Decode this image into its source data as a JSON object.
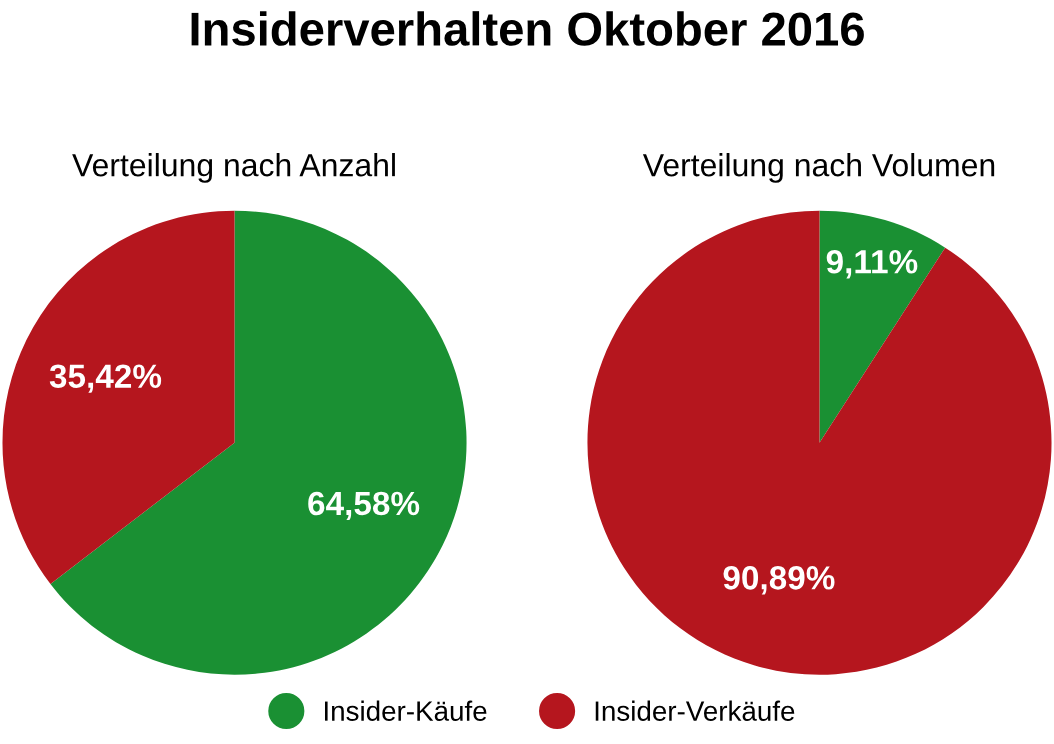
{
  "chart_data": [
    {
      "type": "pie",
      "title": "Insiderverhalten Oktober 2016",
      "subtitle": "Verteilung nach Anzahl",
      "categories": [
        "Insider-Käufe",
        "Insider-Verkäufe"
      ],
      "values": [
        64.58,
        35.42
      ],
      "value_labels": [
        "64,58%",
        "35,42%"
      ],
      "colors": [
        "#1a9033",
        "#b5161e"
      ],
      "legend": "bottom"
    },
    {
      "type": "pie",
      "subtitle": "Verteilung nach Volumen",
      "categories": [
        null,
        null
      ],
      "values": [
        9.11,
        90.89
      ],
      "value_labels": [
        "9,11%",
        "90,89%"
      ],
      "colors": [
        "#1a9033",
        "#b5161e"
      ]
    }
  ]
}
